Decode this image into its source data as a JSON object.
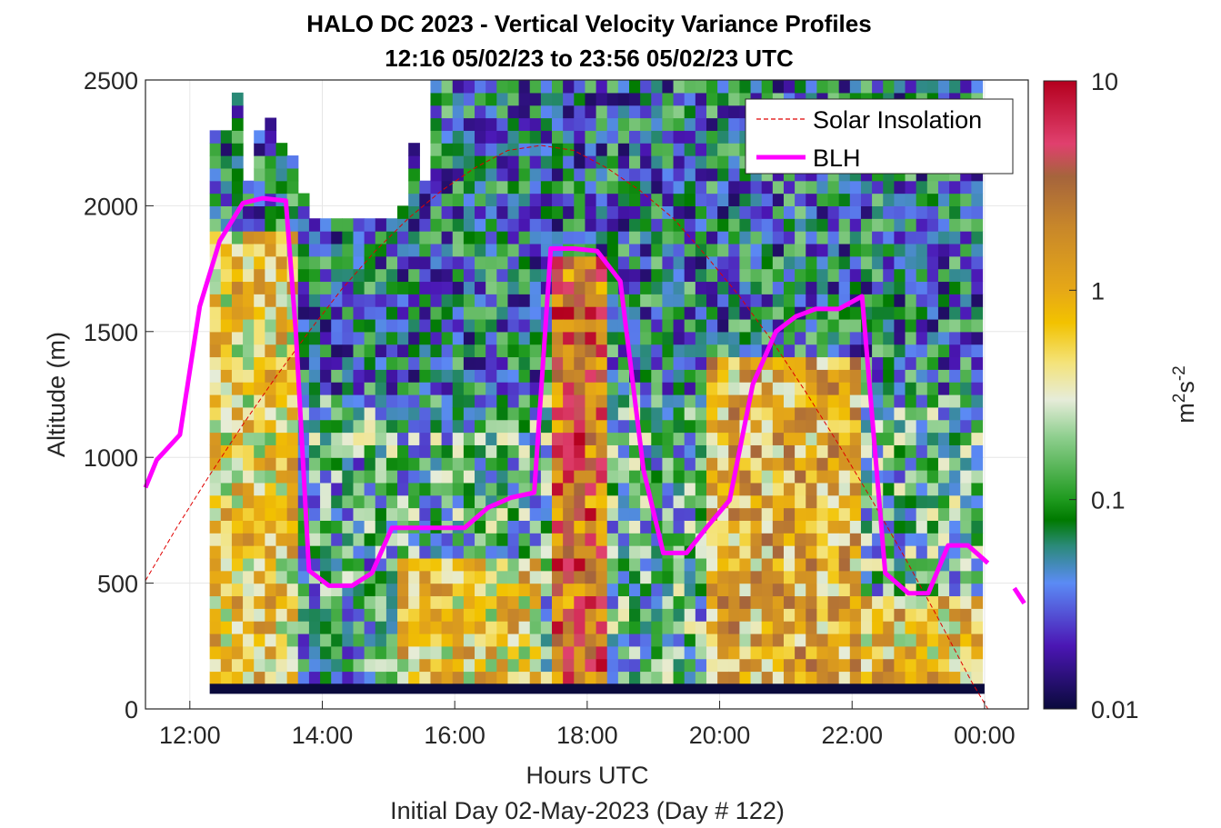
{
  "chart_data": {
    "type": "heatmap",
    "title": "HALO DC 2023 - Vertical Velocity Variance Profiles",
    "subtitle": "12:16 05/02/23 to 23:56 05/02/23  UTC",
    "xlabel": "Hours UTC",
    "xlabel2": "Initial Day 02-May-2023 (Day # 122)",
    "ylabel": "Altitude (m)",
    "xlim": [
      11.33,
      24.66
    ],
    "ylim": [
      0,
      2500
    ],
    "x_ticks": [
      {
        "value": 12,
        "label": "12:00"
      },
      {
        "value": 14,
        "label": "14:00"
      },
      {
        "value": 16,
        "label": "16:00"
      },
      {
        "value": 18,
        "label": "18:00"
      },
      {
        "value": 20,
        "label": "20:00"
      },
      {
        "value": 22,
        "label": "22:00"
      },
      {
        "value": 24,
        "label": "00:00"
      }
    ],
    "y_ticks": [
      {
        "value": 0,
        "label": "0"
      },
      {
        "value": 500,
        "label": "500"
      },
      {
        "value": 1000,
        "label": "1000"
      },
      {
        "value": 1500,
        "label": "1500"
      },
      {
        "value": 2000,
        "label": "2000"
      },
      {
        "value": 2500,
        "label": "2500"
      }
    ],
    "grid": true,
    "colorbar": {
      "scale": "log",
      "min": 0.01,
      "max": 10,
      "ticks": [
        {
          "value": 0.01,
          "label": "0.01"
        },
        {
          "value": 0.1,
          "label": "0.1"
        },
        {
          "value": 1,
          "label": "1"
        },
        {
          "value": 10,
          "label": "10"
        }
      ],
      "label": "m²s⁻²",
      "label_base1": "m",
      "label_sup1": "2",
      "label_base2": "s",
      "label_sup2": "-2",
      "stops": [
        {
          "value": 0.01,
          "color": "#0a0a3c"
        },
        {
          "value": 0.02,
          "color": "#4b16b4"
        },
        {
          "value": 0.04,
          "color": "#5b8bf5"
        },
        {
          "value": 0.06,
          "color": "#2b8a7a"
        },
        {
          "value": 0.08,
          "color": "#007a00"
        },
        {
          "value": 0.1,
          "color": "#1e9a1e"
        },
        {
          "value": 0.2,
          "color": "#8fcf8f"
        },
        {
          "value": 0.3,
          "color": "#e6ecd9"
        },
        {
          "value": 0.45,
          "color": "#f4e37a"
        },
        {
          "value": 0.7,
          "color": "#f2c200"
        },
        {
          "value": 1.0,
          "color": "#e6a817"
        },
        {
          "value": 2.0,
          "color": "#c8872a"
        },
        {
          "value": 3.5,
          "color": "#a5643c"
        },
        {
          "value": 5.0,
          "color": "#e0406e"
        },
        {
          "value": 10.0,
          "color": "#b4001e"
        }
      ]
    },
    "heatmap": {
      "x_start": 12.3,
      "x_end": 24.0,
      "bin_width_hours": 0.16667,
      "y_start": 100,
      "bin_height_m": 50,
      "column_tops_m": [
        2300,
        2300,
        2450,
        2100,
        2300,
        2350,
        2250,
        2200,
        2050,
        1950,
        1950,
        1950,
        1950,
        1950,
        1950,
        1950,
        1950,
        2000,
        2250,
        2100,
        2600,
        2600,
        2600,
        2600,
        2600,
        2600,
        2600,
        2600,
        2600,
        2600,
        2600,
        2600,
        2600,
        2600,
        2600,
        2600,
        2600,
        2600,
        2600,
        2600,
        2600,
        2600,
        2600,
        2600,
        2600,
        2600,
        2600,
        2600,
        2600,
        2600,
        2600,
        2600,
        2600,
        2600,
        2600,
        2600,
        2600,
        2600,
        2600,
        2600,
        2600,
        2600,
        2600,
        2600,
        2600,
        2600,
        2600,
        2600,
        2600,
        2600
      ],
      "bottom_row_value": 0.01,
      "note_values": "log10 variance per cell, generated procedurally from regime description",
      "regimes": [
        {
          "x_from": 12.3,
          "x_to": 13.6,
          "below_m": 1900,
          "value": 0.55
        },
        {
          "x_from": 13.6,
          "x_to": 15.2,
          "below_m": 1000,
          "value": 0.08
        },
        {
          "x_from": 15.2,
          "x_to": 17.3,
          "below_m": 600,
          "value": 0.6
        },
        {
          "x_from": 17.5,
          "x_to": 18.3,
          "below_m": 1800,
          "value": 2.5
        },
        {
          "x_from": 19.8,
          "x_to": 22.2,
          "below_m": 1400,
          "value": 0.9
        },
        {
          "x_from": 22.2,
          "x_to": 24.0,
          "below_m": 450,
          "value": 0.7
        }
      ]
    },
    "series": [
      {
        "name": "Solar Insolation",
        "style": "dashed",
        "color": "#e00000",
        "x": [
          11.33,
          11.8,
          12.3,
          12.8,
          13.3,
          13.8,
          14.3,
          14.8,
          15.3,
          15.8,
          16.3,
          16.8,
          17.3,
          17.8,
          18.3,
          18.8,
          19.3,
          19.8,
          20.3,
          20.8,
          21.3,
          21.8,
          22.3,
          22.8,
          23.3,
          23.8,
          24.05,
          24.66
        ],
        "y": [
          510,
          720,
          930,
          1130,
          1320,
          1500,
          1670,
          1820,
          1950,
          2060,
          2150,
          2220,
          2240,
          2220,
          2150,
          2060,
          1950,
          1800,
          1640,
          1460,
          1260,
          1050,
          830,
          600,
          360,
          110,
          0,
          0
        ]
      },
      {
        "name": "BLH",
        "style": "solid",
        "color": "#ff00ff",
        "segments": [
          {
            "x": [
              11.33,
              11.5,
              11.85,
              12.15,
              12.45,
              12.8,
              13.1,
              13.45,
              13.6,
              13.8,
              14.1,
              14.45,
              14.75,
              15.05,
              15.35,
              15.8,
              16.15,
              16.5,
              16.85,
              17.2,
              17.45,
              17.8,
              18.15,
              18.5,
              18.85,
              19.15,
              19.5,
              19.8,
              20.15,
              20.5,
              20.85,
              21.15,
              21.45,
              21.8,
              22.15,
              22.5,
              22.85,
              23.15,
              23.45,
              23.75,
              24.05
            ],
            "y": [
              880,
              990,
              1090,
              1600,
              1860,
              2010,
              2030,
              2020,
              1500,
              550,
              490,
              490,
              540,
              720,
              720,
              720,
              720,
              800,
              840,
              860,
              1830,
              1830,
              1820,
              1700,
              950,
              620,
              620,
              720,
              830,
              1290,
              1500,
              1560,
              1590,
              1590,
              1640,
              540,
              460,
              460,
              650,
              650,
              580
            ]
          },
          {
            "x": [
              24.45,
              24.6
            ],
            "y": [
              480,
              420
            ]
          }
        ]
      }
    ],
    "legend": {
      "placement": "top-right",
      "entries": [
        {
          "label": "Solar Insolation",
          "style": "dashed",
          "color": "#e00000"
        },
        {
          "label": "BLH",
          "style": "solid",
          "color": "#ff00ff"
        }
      ]
    }
  }
}
